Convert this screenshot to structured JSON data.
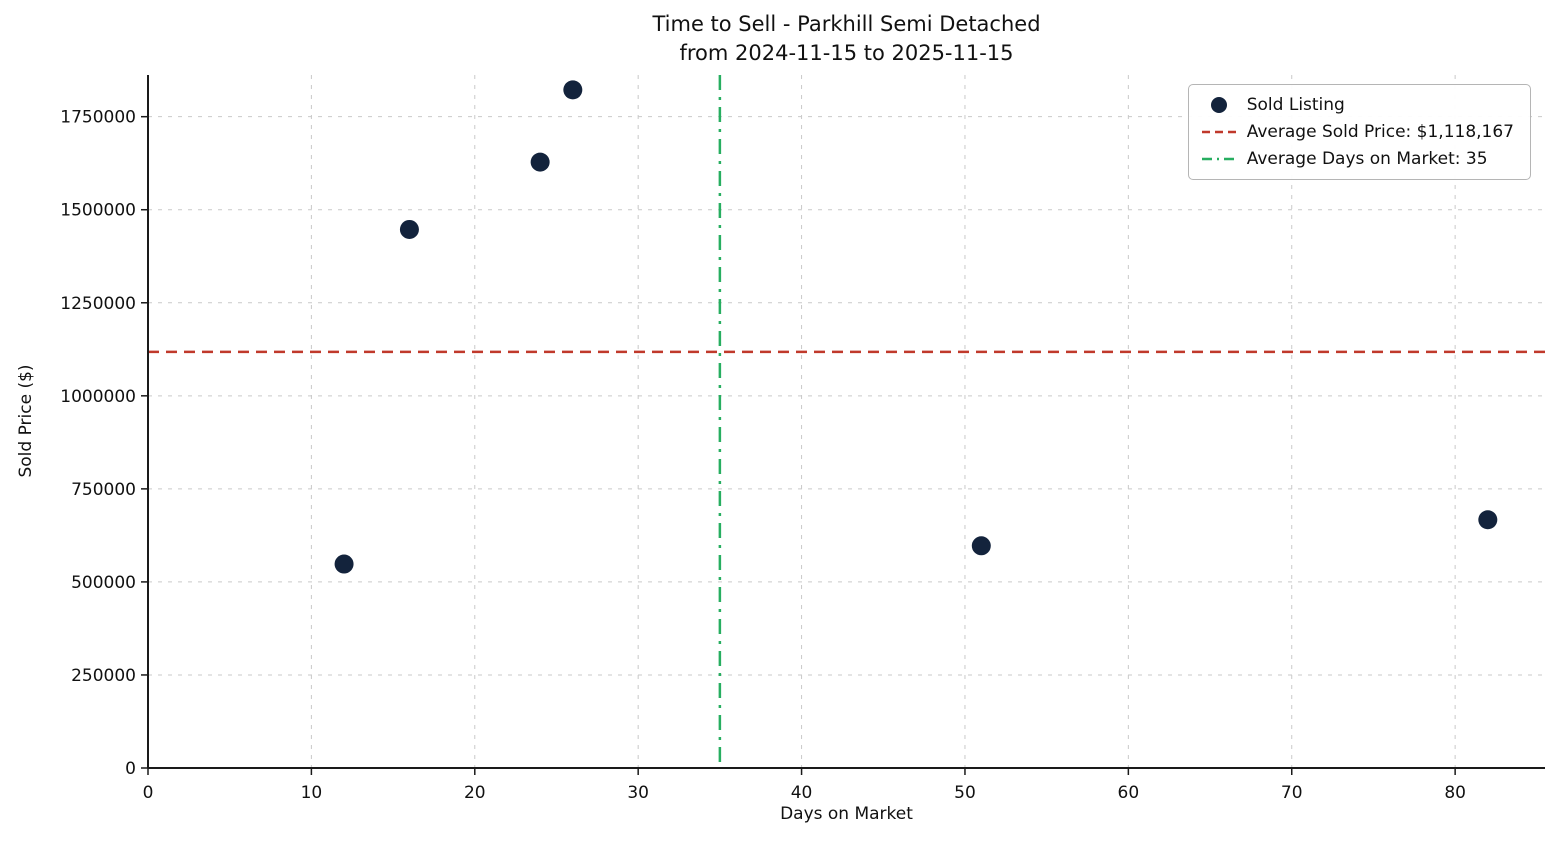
{
  "chart_data": {
    "type": "scatter",
    "title_line1": "Time to Sell - Parkhill Semi Detached",
    "title_line2": "from 2024-11-15 to 2025-11-15",
    "xlabel": "Days on Market",
    "ylabel": "Sold Price ($)",
    "xlim": [
      0,
      85.5
    ],
    "ylim": [
      0,
      1862000
    ],
    "x_ticks": [
      0,
      10,
      20,
      30,
      40,
      50,
      60,
      70,
      80
    ],
    "y_ticks": [
      0,
      250000,
      500000,
      750000,
      1000000,
      1250000,
      1500000,
      1750000
    ],
    "points": [
      {
        "x": 12,
        "y": 548000
      },
      {
        "x": 16,
        "y": 1447000
      },
      {
        "x": 24,
        "y": 1628000
      },
      {
        "x": 26,
        "y": 1822000
      },
      {
        "x": 51,
        "y": 597000
      },
      {
        "x": 82,
        "y": 667000
      }
    ],
    "avg_sold_price": 1118167,
    "avg_days_on_market": 35,
    "grid": true,
    "legend_position": "upper right",
    "legend": [
      {
        "label": "Sold Listing",
        "type": "marker"
      },
      {
        "label": "Average Sold Price: $1,118,167",
        "type": "dashed"
      },
      {
        "label": "Average Days on Market: 35",
        "type": "dashdot"
      }
    ],
    "colors": {
      "point": "#13233C",
      "avg_price_line": "#C0392B",
      "avg_days_line": "#27AE60",
      "grid": "#c9c9c9",
      "axis": "#1a1a1a",
      "text": "#111111"
    }
  }
}
